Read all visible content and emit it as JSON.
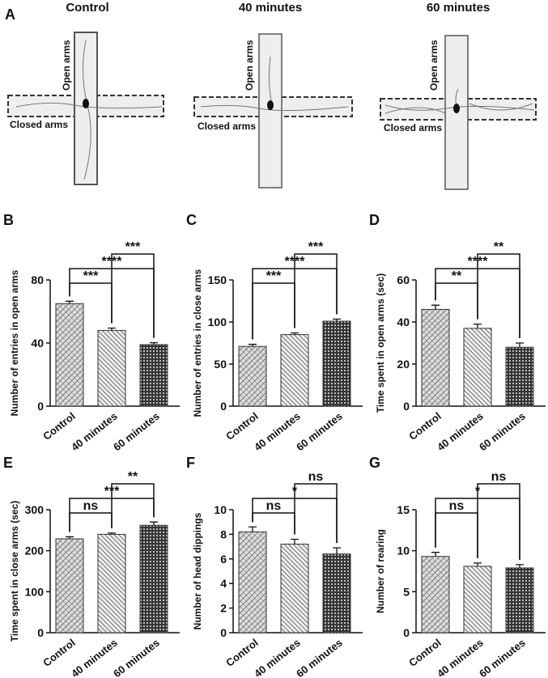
{
  "panel_a": {
    "label": "A",
    "mazes": [
      {
        "title": "Control",
        "open_label": "Open arms",
        "closed_label": "Closed arms"
      },
      {
        "title": "40 minutes",
        "open_label": "Open arms",
        "closed_label": "Closed arms"
      },
      {
        "title": "60 minutes",
        "open_label": "Open arms",
        "closed_label": "Closed arms"
      }
    ]
  },
  "chart_data": [
    {
      "type": "bar",
      "panel": "B",
      "ylabel": "Number of entries in open arms",
      "categories": [
        "Control",
        "40 minutes",
        "60 minutes"
      ],
      "values": [
        65,
        48,
        39
      ],
      "errors": [
        1.5,
        1.5,
        1.2
      ],
      "ylim": [
        0,
        80
      ],
      "yticks": [
        0,
        40,
        80
      ],
      "comparisons": [
        {
          "pair": [
            0,
            1
          ],
          "label": "***"
        },
        {
          "pair": [
            0,
            2
          ],
          "label": "****"
        },
        {
          "pair": [
            1,
            2
          ],
          "label": "***"
        }
      ]
    },
    {
      "type": "bar",
      "panel": "C",
      "ylabel": "Number of entries in close arms",
      "categories": [
        "Control",
        "40 minutes",
        "60 minutes"
      ],
      "values": [
        71,
        85,
        101
      ],
      "errors": [
        2.5,
        2,
        2.5
      ],
      "ylim": [
        0,
        150
      ],
      "yticks": [
        0,
        50,
        100,
        150
      ],
      "comparisons": [
        {
          "pair": [
            0,
            1
          ],
          "label": "***"
        },
        {
          "pair": [
            0,
            2
          ],
          "label": "****"
        },
        {
          "pair": [
            1,
            2
          ],
          "label": "***"
        }
      ]
    },
    {
      "type": "bar",
      "panel": "D",
      "ylabel": "Time spent in open arms (sec)",
      "categories": [
        "Control",
        "40 minutes",
        "60 minutes"
      ],
      "values": [
        46,
        37,
        28
      ],
      "errors": [
        2,
        2,
        2
      ],
      "ylim": [
        0,
        60
      ],
      "yticks": [
        0,
        20,
        40,
        60
      ],
      "comparisons": [
        {
          "pair": [
            0,
            1
          ],
          "label": "**"
        },
        {
          "pair": [
            0,
            2
          ],
          "label": "****"
        },
        {
          "pair": [
            1,
            2
          ],
          "label": "**"
        }
      ]
    },
    {
      "type": "bar",
      "panel": "E",
      "ylabel": "Time spent in close arms (sec)",
      "categories": [
        "Control",
        "40 minutes",
        "60 minutes"
      ],
      "values": [
        229,
        240,
        262
      ],
      "errors": [
        5,
        3,
        8
      ],
      "ylim": [
        0,
        300
      ],
      "yticks": [
        0,
        100,
        200,
        300
      ],
      "comparisons": [
        {
          "pair": [
            0,
            1
          ],
          "label": "ns"
        },
        {
          "pair": [
            0,
            2
          ],
          "label": "***"
        },
        {
          "pair": [
            1,
            2
          ],
          "label": "**"
        }
      ]
    },
    {
      "type": "bar",
      "panel": "F",
      "ylabel": "Number of head dippings",
      "categories": [
        "Control",
        "40 minutes",
        "60 minutes"
      ],
      "values": [
        8.2,
        7.2,
        6.4
      ],
      "errors": [
        0.4,
        0.4,
        0.5
      ],
      "ylim": [
        0,
        10
      ],
      "yticks": [
        0,
        2,
        4,
        6,
        8,
        10
      ],
      "comparisons": [
        {
          "pair": [
            0,
            1
          ],
          "label": "ns"
        },
        {
          "pair": [
            0,
            2
          ],
          "label": "*"
        },
        {
          "pair": [
            1,
            2
          ],
          "label": "ns"
        }
      ]
    },
    {
      "type": "bar",
      "panel": "G",
      "ylabel": "Number of rearing",
      "categories": [
        "Control",
        "40 minutes",
        "60 minutes"
      ],
      "values": [
        9.3,
        8.1,
        7.9
      ],
      "errors": [
        0.5,
        0.4,
        0.4
      ],
      "ylim": [
        0,
        15
      ],
      "yticks": [
        0,
        5,
        10,
        15
      ],
      "comparisons": [
        {
          "pair": [
            0,
            1
          ],
          "label": "ns"
        },
        {
          "pair": [
            0,
            2
          ],
          "label": "*"
        },
        {
          "pair": [
            1,
            2
          ],
          "label": "ns"
        }
      ]
    }
  ]
}
